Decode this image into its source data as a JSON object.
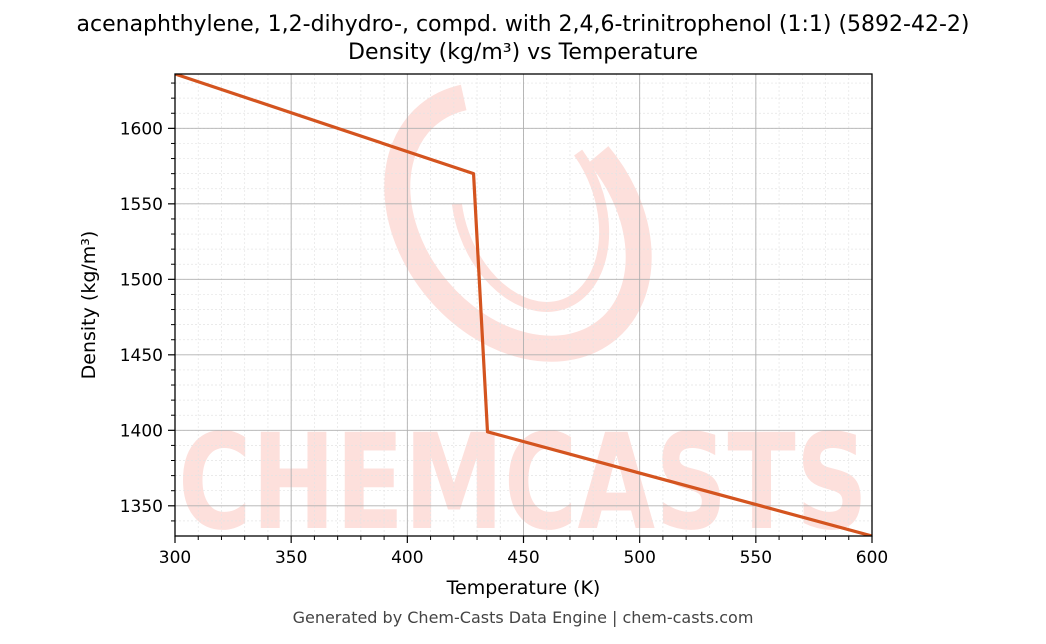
{
  "chart_data": {
    "type": "line",
    "title": "acenaphthylene, 1,2-dihydro-, compd. with 2,4,6-trinitrophenol (1:1) (5892-42-2)",
    "subtitle": "Density (kg/m³) vs Temperature",
    "xlabel": "Temperature (K)",
    "ylabel": "Density (kg/m³)",
    "xlim": [
      300,
      600
    ],
    "ylim": [
      1330,
      1636
    ],
    "xticks": [
      300,
      350,
      400,
      450,
      500,
      550,
      600
    ],
    "yticks": [
      1350,
      1400,
      1450,
      1500,
      1550,
      1600
    ],
    "grid": true,
    "series": [
      {
        "color": "#d4541f",
        "x": [
          300,
          428.5,
          434.5,
          600
        ],
        "y": [
          1636,
          1570,
          1399,
          1330
        ]
      }
    ]
  },
  "watermark": {
    "text": "CHEMCASTS",
    "color": "#fde0dc"
  },
  "footer": "Generated by Chem-Casts Data Engine | chem-casts.com"
}
